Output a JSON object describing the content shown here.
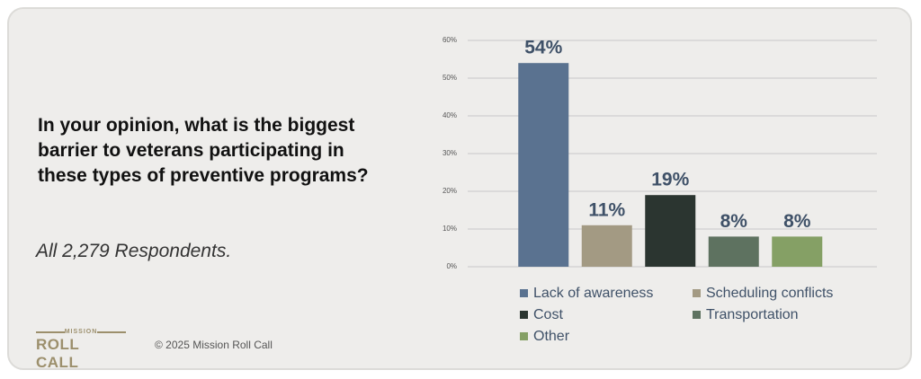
{
  "question": "In your opinion, what is the biggest barrier to veterans participating in these types of preventive programs?",
  "subtitle": "All 2,279 Respondents.",
  "logo": {
    "top": "MISSION",
    "main": "ROLL CALL"
  },
  "copyright": "© 2025 Mission Roll Call",
  "chart_data": {
    "type": "bar",
    "categories": [
      "Lack of awareness",
      "Scheduling conflicts",
      "Cost",
      "Transportation",
      "Other"
    ],
    "values": [
      54,
      11,
      19,
      8,
      8
    ],
    "value_labels": [
      "54%",
      "11%",
      "19%",
      "8%",
      "8%"
    ],
    "colors": [
      "#5a7290",
      "#a39a83",
      "#2b3530",
      "#5e7260",
      "#85a065"
    ],
    "ylim": [
      0,
      60
    ],
    "yticks": [
      {
        "value": 0,
        "label": "0%"
      },
      {
        "value": 10,
        "label": "10%"
      },
      {
        "value": 20,
        "label": "20%"
      },
      {
        "value": 30,
        "label": "30%"
      },
      {
        "value": 40,
        "label": "40%"
      },
      {
        "value": 50,
        "label": "50%"
      },
      {
        "value": 60,
        "label": "60%"
      }
    ],
    "grid": true,
    "legend": "bottom"
  }
}
